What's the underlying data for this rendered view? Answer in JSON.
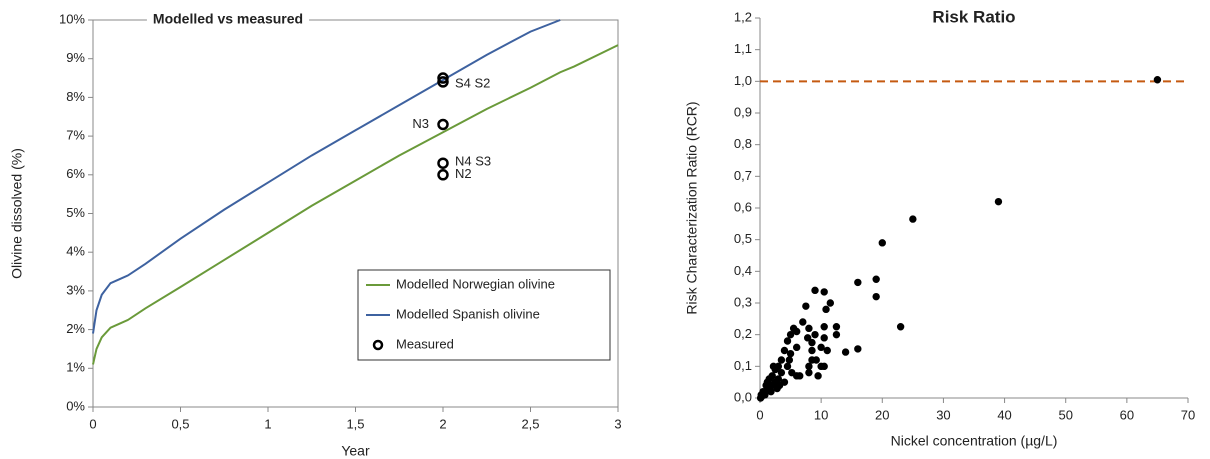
{
  "chart_data": [
    {
      "type": "line",
      "title": "Modelled vs measured",
      "xlabel": "Year",
      "ylabel": "Olivine dissolved (%)",
      "x": [
        0,
        0.02,
        0.05,
        0.1,
        0.15,
        0.2,
        0.3,
        0.5,
        0.75,
        1,
        1.25,
        1.5,
        1.75,
        2,
        2.25,
        2.5,
        2.67,
        2.75,
        3
      ],
      "series": [
        {
          "name": "Modelled Norwegian olivine",
          "color": "#6a9a3a",
          "values": [
            1.1,
            1.5,
            1.8,
            2.05,
            2.15,
            2.25,
            2.55,
            3.1,
            3.8,
            4.5,
            5.2,
            5.85,
            6.5,
            7.1,
            7.7,
            8.25,
            8.65,
            8.8,
            9.35
          ]
        },
        {
          "name": "Modelled Spanish olivine",
          "color": "#3e62a0",
          "values": [
            1.9,
            2.5,
            2.9,
            3.2,
            3.3,
            3.4,
            3.7,
            4.35,
            5.1,
            5.8,
            6.5,
            7.15,
            7.8,
            8.45,
            9.1,
            9.7,
            10,
            null,
            null
          ]
        },
        {
          "name": "Measured",
          "type": "scatter",
          "color": "#000000",
          "x": [
            2,
            2,
            2,
            2,
            2
          ],
          "values": [
            8.5,
            8.4,
            7.3,
            6.3,
            6.0
          ]
        }
      ],
      "annotations": [
        "S4  S2",
        "N3",
        "N4  S3",
        "N2"
      ],
      "xlim": [
        0,
        3
      ],
      "xticks": [
        0,
        {
          "value": 0.5,
          "label": "0,5"
        },
        1,
        {
          "value": 1.5,
          "label": "1,5"
        },
        2,
        {
          "value": 2.5,
          "label": "2,5"
        },
        3
      ],
      "ylim": [
        0,
        10
      ],
      "yticks": [
        {
          "value": 0,
          "label": "0%"
        },
        {
          "value": 1,
          "label": "1%"
        },
        {
          "value": 2,
          "label": "2%"
        },
        {
          "value": 3,
          "label": "3%"
        },
        {
          "value": 4,
          "label": "4%"
        },
        {
          "value": 5,
          "label": "5%"
        },
        {
          "value": 6,
          "label": "6%"
        },
        {
          "value": 7,
          "label": "7%"
        },
        {
          "value": 8,
          "label": "8%"
        },
        {
          "value": 9,
          "label": "9%"
        },
        {
          "value": 10,
          "label": "10%"
        }
      ],
      "legend": "lower right"
    },
    {
      "type": "scatter",
      "title": "Risk Ratio",
      "xlabel": "Nickel concentration (µg/L)",
      "ylabel": "Risk Characterization Ratio (RCR)",
      "x": [
        65,
        39,
        25,
        20,
        19,
        19,
        16,
        23,
        16,
        14,
        12.5,
        12.5,
        11.5,
        10.5,
        10.8,
        9,
        10.5,
        10.5,
        10,
        10,
        10.5,
        9,
        8.5,
        8,
        8.5,
        8.5,
        8,
        7.5,
        7,
        8,
        6,
        5.5,
        6,
        6,
        5,
        5,
        4.5,
        4.5,
        4,
        3.5,
        4,
        3.5,
        3,
        3,
        2.5,
        2.5,
        2,
        2,
        1.5,
        1.5,
        1,
        1,
        0.5,
        0.5,
        0.3,
        0.1,
        0.2,
        1.2,
        2.2,
        3.2,
        6.5,
        5.2,
        9.2,
        7.8,
        4.8,
        1.8,
        2.8,
        0.8,
        11,
        9.5
      ],
      "values": [
        1.005,
        0.62,
        0.565,
        0.49,
        0.375,
        0.32,
        0.365,
        0.225,
        0.155,
        0.145,
        0.225,
        0.2,
        0.3,
        0.335,
        0.28,
        0.34,
        0.225,
        0.19,
        0.16,
        0.1,
        0.1,
        0.2,
        0.175,
        0.22,
        0.15,
        0.12,
        0.1,
        0.29,
        0.24,
        0.08,
        0.21,
        0.22,
        0.16,
        0.07,
        0.2,
        0.14,
        0.18,
        0.1,
        0.15,
        0.12,
        0.05,
        0.08,
        0.1,
        0.06,
        0.09,
        0.05,
        0.07,
        0.04,
        0.06,
        0.03,
        0.04,
        0.02,
        0.01,
        0.02,
        0.005,
        0,
        0.01,
        0.05,
        0.1,
        0.04,
        0.07,
        0.08,
        0.12,
        0.19,
        0.12,
        0.02,
        0.03,
        0.01,
        0.15,
        0.07
      ],
      "color": "#000000",
      "reference_line": {
        "value": 1,
        "color": "#c55a11"
      },
      "xlim": [
        0,
        70
      ],
      "xticks": [
        0,
        10,
        20,
        30,
        40,
        50,
        60,
        70
      ],
      "ylim": [
        0,
        1.2
      ],
      "yticks": [
        {
          "value": 0,
          "label": "0,0"
        },
        {
          "value": 0.1,
          "label": "0,1"
        },
        {
          "value": 0.2,
          "label": "0,2"
        },
        {
          "value": 0.3,
          "label": "0,3"
        },
        {
          "value": 0.4,
          "label": "0,4"
        },
        {
          "value": 0.5,
          "label": "0,5"
        },
        {
          "value": 0.6,
          "label": "0,6"
        },
        {
          "value": 0.7,
          "label": "0,7"
        },
        {
          "value": 0.8,
          "label": "0,8"
        },
        {
          "value": 0.9,
          "label": "0,9"
        },
        {
          "value": 1,
          "label": "1,0"
        },
        {
          "value": 1.1,
          "label": "1,1"
        },
        {
          "value": 1.2,
          "label": "1,2"
        }
      ]
    }
  ]
}
